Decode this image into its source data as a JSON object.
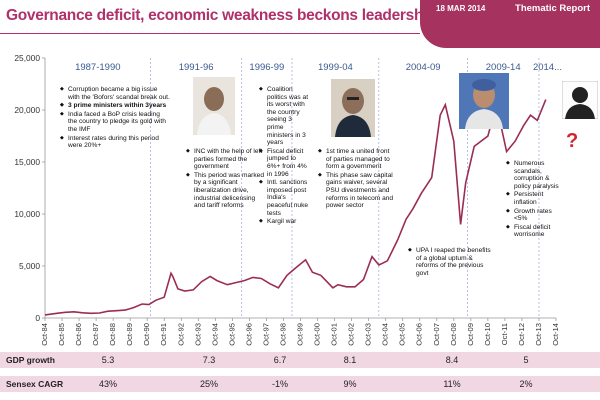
{
  "header": {
    "title": "Governance deficit, economic weakness beckons leadership change",
    "date": "18 MAR 2014",
    "report_type": "Thematic Report"
  },
  "colors": {
    "line": "#9b2d55",
    "accent": "#a6325f",
    "period_label": "#3a5a8f",
    "divider": "#8899cc"
  },
  "chart_data": {
    "type": "line",
    "title": "",
    "xlabel": "",
    "ylabel": "",
    "ylim": [
      0,
      25000
    ],
    "yticks": [
      0,
      5000,
      10000,
      15000,
      20000,
      25000
    ],
    "ytick_labels": [
      "0",
      "5,000",
      "10,000",
      "15,000",
      "20,000",
      "25,000"
    ],
    "xticks": [
      "Oct-84",
      "Oct-85",
      "Oct-86",
      "Oct-87",
      "Oct-88",
      "Oct-89",
      "Oct-90",
      "Oct-91",
      "Oct-92",
      "Oct-93",
      "Oct-94",
      "Oct-95",
      "Oct-96",
      "Oct-97",
      "Oct-98",
      "Oct-99",
      "Oct-00",
      "Oct-01",
      "Oct-02",
      "Oct-03",
      "Oct-04",
      "Oct-05",
      "Oct-06",
      "Oct-07",
      "Oct-08",
      "Oct-09",
      "Oct-10",
      "Oct-11",
      "Oct-12",
      "Oct-13",
      "Oct-14"
    ],
    "series": [
      {
        "x": [
          1984.8,
          1985.5,
          1986.0,
          1986.5,
          1987.0,
          1987.5,
          1988.0,
          1988.5,
          1989.0,
          1989.5,
          1990.0,
          1990.5,
          1990.9,
          1991.3,
          1991.8,
          1992.2,
          1992.3,
          1992.6,
          1993.0,
          1993.5,
          1994.0,
          1994.5,
          1994.9,
          1995.5,
          1996.0,
          1996.5,
          1997.0,
          1997.5,
          1998.0,
          1998.5,
          1999.0,
          1999.5,
          2000.1,
          2000.5,
          2001.0,
          2001.7,
          2002.0,
          2002.5,
          2003.0,
          2003.5,
          2004.0,
          2004.4,
          2004.9,
          2005.5,
          2006.0,
          2006.4,
          2006.9,
          2007.5,
          2008.0,
          2008.3,
          2008.8,
          2009.2,
          2009.5,
          2010.0,
          2010.8,
          2011.3,
          2011.9,
          2012.4,
          2012.9,
          2013.3,
          2013.7,
          2014.2
        ],
        "values": [
          300,
          450,
          550,
          600,
          500,
          450,
          480,
          650,
          700,
          760,
          1000,
          1350,
          1300,
          1700,
          2000,
          4300,
          4000,
          2800,
          2600,
          2700,
          3500,
          4000,
          3600,
          3200,
          3400,
          3600,
          3900,
          3800,
          3300,
          2900,
          4100,
          4800,
          5600,
          4400,
          4100,
          2900,
          3200,
          3000,
          3000,
          3700,
          5900,
          5100,
          5500,
          7500,
          9500,
          10500,
          12000,
          13500,
          19500,
          20500,
          17000,
          9000,
          13000,
          16500,
          17500,
          20500,
          16000,
          17000,
          18500,
          19500,
          19000,
          21000
        ]
      }
    ],
    "periods": [
      {
        "label": "1987-1990"
      },
      {
        "label": "1991-96"
      },
      {
        "label": "1996-99"
      },
      {
        "label": "1999-04"
      },
      {
        "label": "2004-09"
      },
      {
        "label": "2009-14"
      },
      {
        "label": "2014..."
      }
    ]
  },
  "annotations": [
    {
      "items": [
        {
          "text": "Corruption became a big issue with the 'Bofors' scandal break out.",
          "bold": false
        },
        {
          "text": "3 prime ministers within 3years",
          "bold": true
        },
        {
          "text": "India faced a BoP crisis leading the country to pledge its gold with the IMF",
          "bold": false
        },
        {
          "text": "Interest rates during this period were  20%+",
          "bold": false
        }
      ]
    },
    {
      "items": [
        {
          "text": "INC with the help of left parties formed the government",
          "bold": false
        },
        {
          "text": "This period was marked by a significant liberalization drive, industrial delicensing  and tariff reforms",
          "bold": false
        }
      ]
    },
    {
      "items": [
        {
          "text": "Coalition politics was at its worst with the country seeing 3 prime ministers in 3 years",
          "bold": false
        },
        {
          "text": "Fiscal deficit jumped to 6%+ from 4% in 1996",
          "bold": false
        },
        {
          "text": "Intl. sanctions imposed post India's peaceful nuke tests",
          "bold": false
        },
        {
          "text": "Kargil war",
          "bold": false
        }
      ]
    },
    {
      "items": [
        {
          "text": "1st time a united front of parties managed to form a government",
          "bold": false
        },
        {
          "text": "This phase saw capital gains waiver, several PSU divestments and reforms in telecom and power sector",
          "bold": false
        }
      ]
    },
    {
      "items": [
        {
          "text": "UPA I reaped the benefits of a global uptum & reforms of the previous govt",
          "bold": false
        }
      ]
    },
    {
      "items": [
        {
          "text": "Numerous scandals, corruption & policy paralysis",
          "bold": false
        },
        {
          "text": "Persistent inflation",
          "bold": false
        },
        {
          "text": "Growth rates <5%",
          "bold": false
        },
        {
          "text": "Fiscal deficit worrisome",
          "bold": false
        }
      ]
    }
  ],
  "table": {
    "rows": [
      {
        "label": "GDP growth",
        "values": [
          "5.3",
          "7.3",
          "6.7",
          "8.1",
          "8.4",
          "5"
        ]
      },
      {
        "label": "Sensex CAGR",
        "values": [
          "43%",
          "25%",
          "-1%",
          "9%",
          "11%",
          "2%"
        ]
      }
    ]
  },
  "unknown_marker": "?"
}
